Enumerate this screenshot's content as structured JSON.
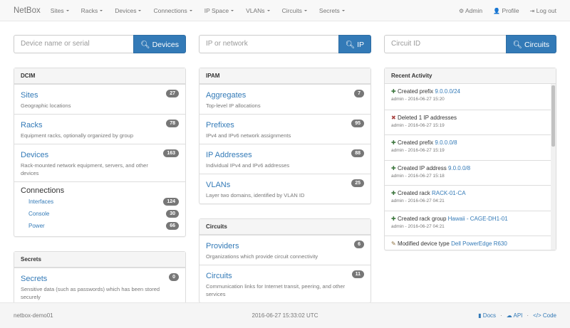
{
  "nav": {
    "brand": "NetBox",
    "menus": [
      "Sites",
      "Racks",
      "Devices",
      "Connections",
      "IP Space",
      "VLANs",
      "Circuits",
      "Secrets"
    ],
    "right": [
      {
        "icon": "gear-icon",
        "glyph": "⚙",
        "label": "Admin"
      },
      {
        "icon": "user-icon",
        "glyph": "👤",
        "label": "Profile"
      },
      {
        "icon": "logout-icon",
        "glyph": "⇥",
        "label": "Log out"
      }
    ]
  },
  "searches": [
    {
      "placeholder": "Device name or serial",
      "button": "Devices"
    },
    {
      "placeholder": "IP or network",
      "button": "IP"
    },
    {
      "placeholder": "Circuit ID",
      "button": "Circuits"
    }
  ],
  "dcim": {
    "title": "DCIM",
    "items": [
      {
        "label": "Sites",
        "desc": "Geographic locations",
        "count": "27"
      },
      {
        "label": "Racks",
        "desc": "Equipment racks, optionally organized by group",
        "count": "78"
      },
      {
        "label": "Devices",
        "desc": "Rack-mounted network equipment, servers, and other devices",
        "count": "163"
      }
    ],
    "connections": {
      "label": "Connections",
      "items": [
        {
          "label": "Interfaces",
          "count": "124"
        },
        {
          "label": "Console",
          "count": "30"
        },
        {
          "label": "Power",
          "count": "66"
        }
      ]
    }
  },
  "secrets": {
    "title": "Secrets",
    "items": [
      {
        "label": "Secrets",
        "desc": "Sensitive data (such as passwords) which has been stored securely",
        "count": "0"
      }
    ]
  },
  "ipam": {
    "title": "IPAM",
    "items": [
      {
        "label": "Aggregates",
        "desc": "Top-level IP allocations",
        "count": "7"
      },
      {
        "label": "Prefixes",
        "desc": "IPv4 and IPv6 network assignments",
        "count": "95"
      },
      {
        "label": "IP Addresses",
        "desc": "Individual IPv4 and IPv6 addresses",
        "count": "88"
      },
      {
        "label": "VLANs",
        "desc": "Layer two domains, identified by VLAN ID",
        "count": "25"
      }
    ]
  },
  "circuits": {
    "title": "Circuits",
    "items": [
      {
        "label": "Providers",
        "desc": "Organizations which provide circuit connectivity",
        "count": "6"
      },
      {
        "label": "Circuits",
        "desc": "Communication links for Internet transit, peering, and other services",
        "count": "11"
      }
    ]
  },
  "activity": {
    "title": "Recent Activity",
    "items": [
      {
        "type": "create",
        "text": "Created prefix",
        "link": "9.0.0.0/24",
        "meta": "admin - 2016-06-27 15:20"
      },
      {
        "type": "delete",
        "text": "Deleted 1 IP addresses",
        "link": "",
        "meta": "admin - 2016-06-27 15:19"
      },
      {
        "type": "create",
        "text": "Created prefix",
        "link": "9.0.0.0/8",
        "meta": "admin - 2016-06-27 15:19"
      },
      {
        "type": "create",
        "text": "Created IP address",
        "link": "9.0.0.0/8",
        "meta": "admin - 2016-06-27 15:18"
      },
      {
        "type": "create",
        "text": "Created rack",
        "link": "RACK-01-CA",
        "meta": "admin - 2016-06-27 04:21"
      },
      {
        "type": "create",
        "text": "Created rack group",
        "link": "Hawaii - CAGE-DH1-01",
        "meta": "admin - 2016-06-27 04:21"
      },
      {
        "type": "modify",
        "text": "Modified device type",
        "link": "Dell PowerEdge R630",
        "meta": ""
      }
    ]
  },
  "icons": {
    "create": {
      "name": "plus-icon",
      "glyph": "✚",
      "color": "#3c763d"
    },
    "delete": {
      "name": "delete-icon",
      "glyph": "✖",
      "color": "#a94442"
    },
    "modify": {
      "name": "pencil-icon",
      "glyph": "✎",
      "color": "#8a6d3b"
    }
  },
  "footer": {
    "host": "netbox-demo01",
    "time": "2016-06-27 15:33:02 UTC",
    "links": [
      {
        "icon": "book-icon",
        "glyph": "▮",
        "label": "Docs"
      },
      {
        "icon": "cloud-icon",
        "glyph": "☁",
        "label": "API"
      },
      {
        "icon": "code-icon",
        "glyph": "</>",
        "label": "Code"
      }
    ]
  }
}
